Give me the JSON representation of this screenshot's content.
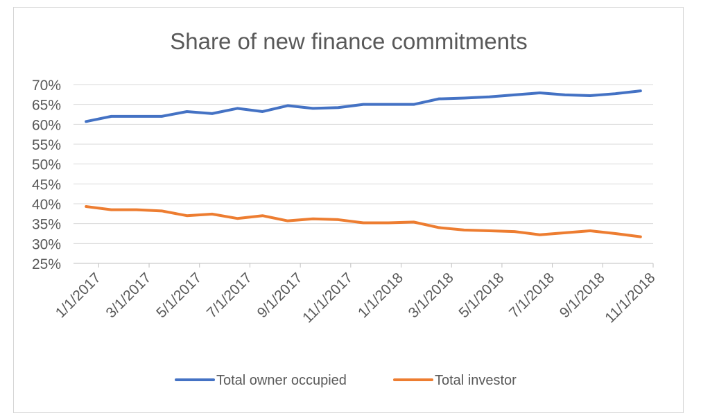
{
  "chart_data": {
    "type": "line",
    "title": "Share of new finance commitments",
    "xlabel": "",
    "ylabel": "",
    "ylim": [
      0.25,
      0.7
    ],
    "y_ticks": [
      "25%",
      "30%",
      "35%",
      "40%",
      "45%",
      "50%",
      "55%",
      "60%",
      "65%",
      "70%"
    ],
    "y_tick_values": [
      0.25,
      0.3,
      0.35,
      0.4,
      0.45,
      0.5,
      0.55,
      0.6,
      0.65,
      0.7
    ],
    "x": [
      "1/1/2017",
      "2/1/2017",
      "3/1/2017",
      "4/1/2017",
      "5/1/2017",
      "6/1/2017",
      "7/1/2017",
      "8/1/2017",
      "9/1/2017",
      "10/1/2017",
      "11/1/2017",
      "12/1/2017",
      "1/1/2018",
      "2/1/2018",
      "3/1/2018",
      "4/1/2018",
      "5/1/2018",
      "6/1/2018",
      "7/1/2018",
      "8/1/2018",
      "9/1/2018",
      "10/1/2018",
      "11/1/2018"
    ],
    "x_tick_labels": [
      "1/1/2017",
      "3/1/2017",
      "5/1/2017",
      "7/1/2017",
      "9/1/2017",
      "11/1/2017",
      "1/1/2018",
      "3/1/2018",
      "5/1/2018",
      "7/1/2018",
      "9/1/2018",
      "11/1/2018"
    ],
    "grid": true,
    "legend_position": "bottom",
    "series": [
      {
        "name": "Total owner occupied",
        "color": "#4472c4",
        "values": [
          0.607,
          0.62,
          0.62,
          0.62,
          0.632,
          0.627,
          0.64,
          0.632,
          0.647,
          0.64,
          0.642,
          0.65,
          0.65,
          0.65,
          0.664,
          0.666,
          0.669,
          0.674,
          0.679,
          0.674,
          0.672,
          0.677,
          0.684
        ]
      },
      {
        "name": "Total investor",
        "color": "#ed7d31",
        "values": [
          0.393,
          0.385,
          0.385,
          0.382,
          0.37,
          0.374,
          0.363,
          0.37,
          0.357,
          0.362,
          0.36,
          0.352,
          0.352,
          0.354,
          0.34,
          0.334,
          0.332,
          0.33,
          0.322,
          0.327,
          0.332,
          0.325,
          0.317
        ]
      }
    ]
  }
}
